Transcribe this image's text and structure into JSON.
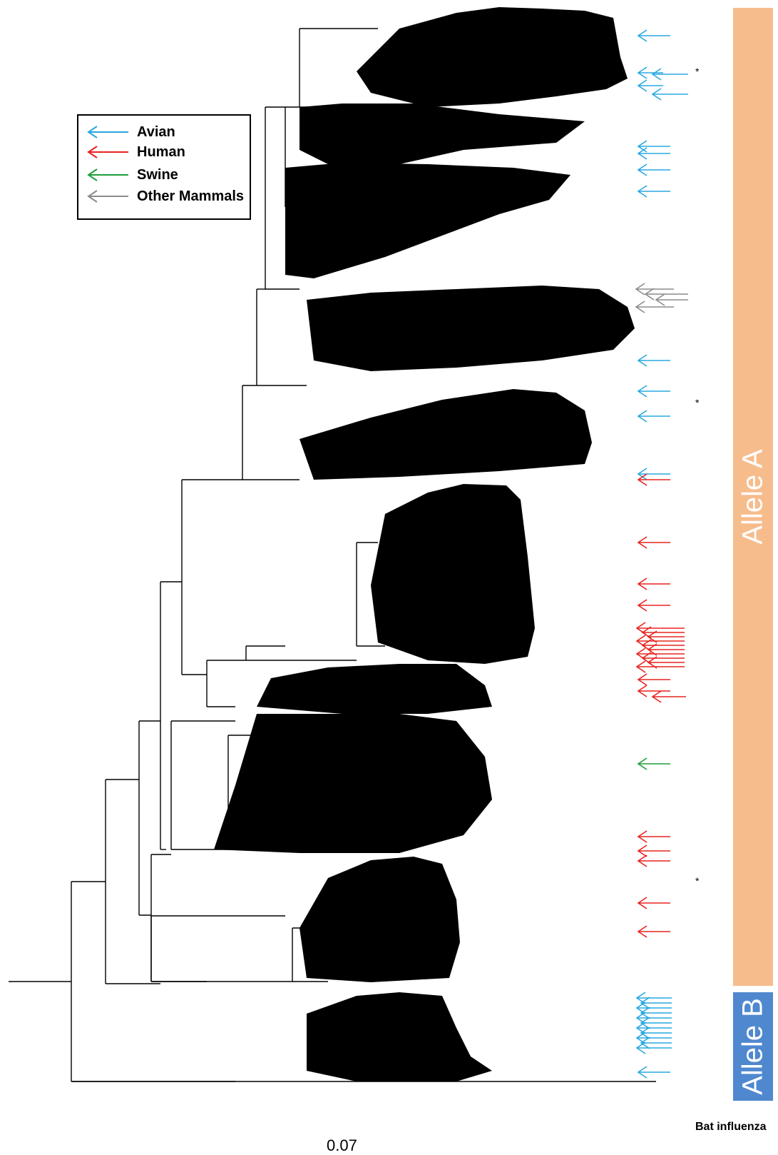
{
  "legend": {
    "items": [
      {
        "label": "Avian",
        "color": "#29a8e0"
      },
      {
        "label": "Human",
        "color": "#e8231f"
      },
      {
        "label": "Swine",
        "color": "#1f9e3a"
      },
      {
        "label": "Other Mammals",
        "color": "#8c8c8c"
      }
    ]
  },
  "alleles": {
    "a_label": "Allele A",
    "b_label": "Allele B",
    "a_color": "#f7bc8c",
    "b_color": "#4f88cf"
  },
  "outgroup_label": "Bat influenza",
  "scale_bar": {
    "label": "0.07"
  },
  "asterisk": "*"
}
